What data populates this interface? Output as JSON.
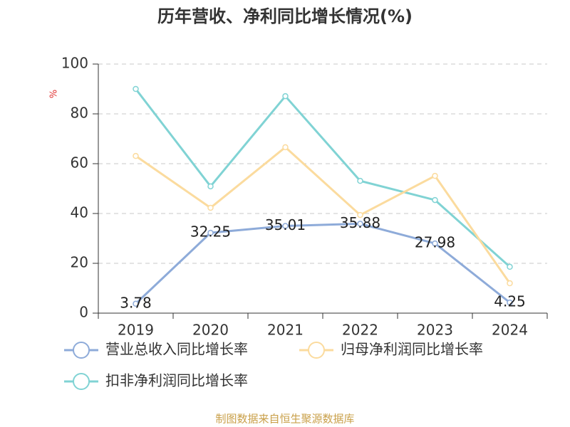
{
  "chart_data": {
    "type": "line",
    "title": "历年营收、净利同比增长情况(%)",
    "y_label": "%",
    "categories": [
      "2019",
      "2020",
      "2021",
      "2022",
      "2023",
      "2024"
    ],
    "series": [
      {
        "name": "营业总收入同比增长率",
        "color": "#8eabd9",
        "values": [
          3.78,
          32.25,
          35.01,
          35.88,
          27.98,
          4.25
        ],
        "show_labels": true
      },
      {
        "name": "归母净利润同比增长率",
        "color": "#fbdb9e",
        "values": [
          63.1,
          42.3,
          66.6,
          39.4,
          55.1,
          12.0
        ]
      },
      {
        "name": "扣非净利润同比增长率",
        "color": "#80d3d4",
        "values": [
          90.0,
          50.9,
          87.1,
          53.1,
          45.4,
          18.6
        ]
      }
    ],
    "ylim": [
      0,
      100
    ],
    "yticks": [
      0,
      20,
      40,
      60,
      80,
      100
    ],
    "grid": true,
    "source": "制图数据来自恒生聚源数据库"
  }
}
